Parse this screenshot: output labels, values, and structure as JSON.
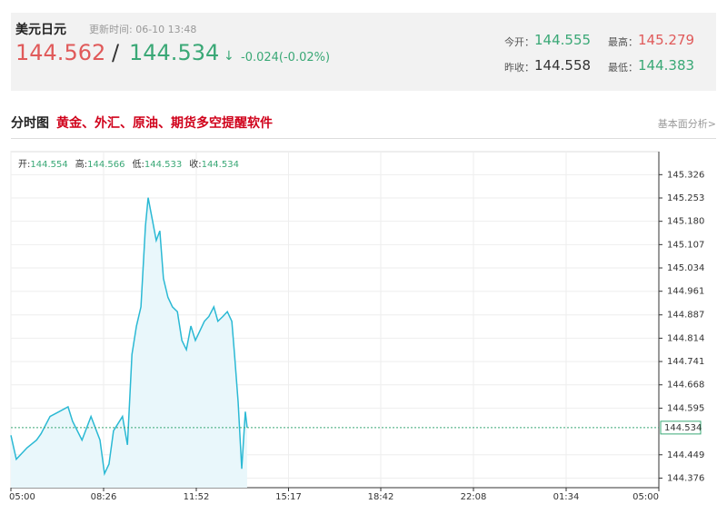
{
  "header": {
    "name": "美元日元",
    "update": "更新时间: 06-10 13:48",
    "price_a": 144.562,
    "slash": "/",
    "price_b": 144.534,
    "arrow": "↓",
    "change": "-0.024(-0.02%)",
    "stats": [
      {
        "label": "今开：",
        "value": 144.555,
        "color": "#3aa876"
      },
      {
        "label": "最高：",
        "value": 145.279,
        "color": "#e05a5a"
      },
      {
        "label": "昨收：",
        "value": 144.558,
        "color": "#333333"
      },
      {
        "label": "最低：",
        "value": 144.383,
        "color": "#3aa876"
      }
    ]
  },
  "section": {
    "title": "分时图",
    "ad": "黄金、外汇、原油、期货多空提醒软件",
    "link": "基本面分析>"
  },
  "chart_data": {
    "type": "line",
    "info": [
      {
        "label": "开:",
        "value": 144.554
      },
      {
        "label": "高:",
        "value": 144.566
      },
      {
        "label": "低:",
        "value": 144.533
      },
      {
        "label": "收:",
        "value": 144.534
      }
    ],
    "xlim": [
      0,
      1440
    ],
    "xticks": [
      {
        "value": 0,
        "label": "05:00"
      },
      {
        "value": 206,
        "label": "08:26"
      },
      {
        "value": 412,
        "label": "11:52"
      },
      {
        "value": 617,
        "label": "15:17"
      },
      {
        "value": 822,
        "label": "18:42"
      },
      {
        "value": 1028,
        "label": "22:08"
      },
      {
        "value": 1234,
        "label": "01:34"
      },
      {
        "value": 1440,
        "label": "05:00"
      }
    ],
    "ylim": [
      144.346,
      145.398
    ],
    "yticks": [
      145.326,
      145.253,
      {
        "value": 145.18,
        "label": "145.180"
      },
      145.107,
      145.034,
      144.961,
      144.887,
      144.814,
      144.741,
      144.668,
      144.595,
      144.449,
      144.376
    ],
    "current": 144.534,
    "grid": true,
    "series": [
      {
        "color": "#2bb9d4",
        "x": [
          0,
          12,
          36,
          57,
          67,
          87,
          107,
          127,
          137,
          158,
          178,
          198,
          208,
          218,
          228,
          248,
          259,
          269,
          279,
          289,
          299,
          305,
          315,
          323,
          331,
          339,
          349,
          359,
          370,
          380,
          390,
          400,
          410,
          420,
          430,
          440,
          451,
          460,
          471,
          481,
          491,
          497,
          505,
          513,
          517,
          521,
          525
        ],
        "values": [
          144.51,
          144.435,
          144.471,
          144.495,
          144.515,
          144.569,
          144.584,
          144.599,
          144.554,
          144.495,
          144.569,
          144.495,
          144.39,
          144.42,
          144.524,
          144.569,
          144.48,
          144.763,
          144.852,
          144.912,
          145.165,
          145.254,
          145.18,
          145.12,
          145.15,
          145.001,
          144.942,
          144.912,
          144.897,
          144.807,
          144.778,
          144.852,
          144.807,
          144.837,
          144.867,
          144.882,
          144.912,
          144.867,
          144.882,
          144.897,
          144.867,
          144.763,
          144.614,
          144.405,
          144.495,
          144.584,
          144.534
        ]
      }
    ]
  }
}
